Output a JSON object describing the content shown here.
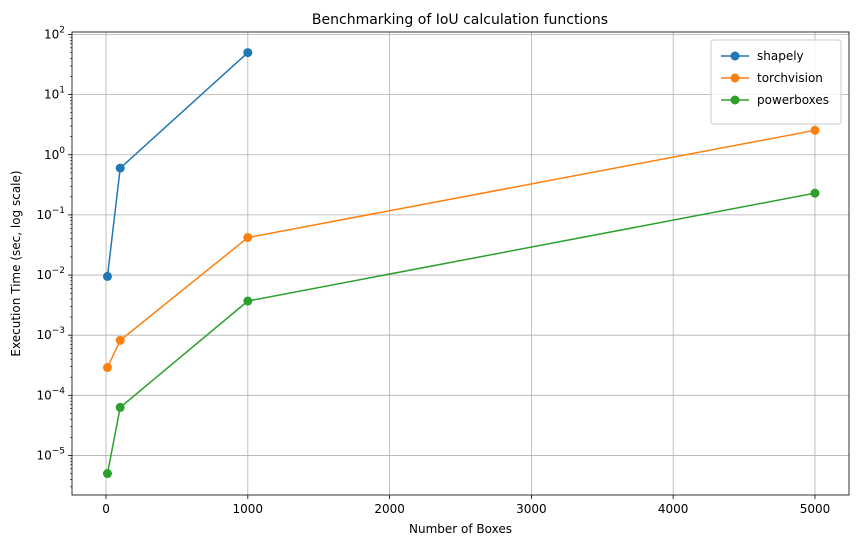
{
  "chart_data": {
    "type": "line",
    "title": "Benchmarking of IoU calculation functions",
    "xlabel": "Number of Boxes",
    "ylabel": "Execution Time (sec, log scale)",
    "yscale": "log",
    "xlim": [
      -240,
      5240
    ],
    "ylim": [
      2.2e-06,
      110
    ],
    "grid": true,
    "legend_position": "top-right",
    "x_ticks": [
      0,
      1000,
      2000,
      3000,
      4000,
      5000
    ],
    "x_tick_labels": [
      "0",
      "1000",
      "2000",
      "3000",
      "4000",
      "5000"
    ],
    "y_tick_exponents": [
      -5,
      -4,
      -3,
      -2,
      -1,
      0,
      1,
      2
    ],
    "series": [
      {
        "name": "shapely",
        "color": "#1f77b4",
        "x": [
          10,
          100,
          1000
        ],
        "y": [
          0.0095,
          0.6,
          50
        ]
      },
      {
        "name": "torchvision",
        "color": "#ff7f0e",
        "x": [
          10,
          100,
          1000,
          5000
        ],
        "y": [
          0.00029,
          0.00082,
          0.042,
          2.55
        ]
      },
      {
        "name": "powerboxes",
        "color": "#2ca02c",
        "x": [
          10,
          100,
          1000,
          5000
        ],
        "y": [
          5e-06,
          6.3e-05,
          0.0037,
          0.23
        ]
      }
    ]
  }
}
